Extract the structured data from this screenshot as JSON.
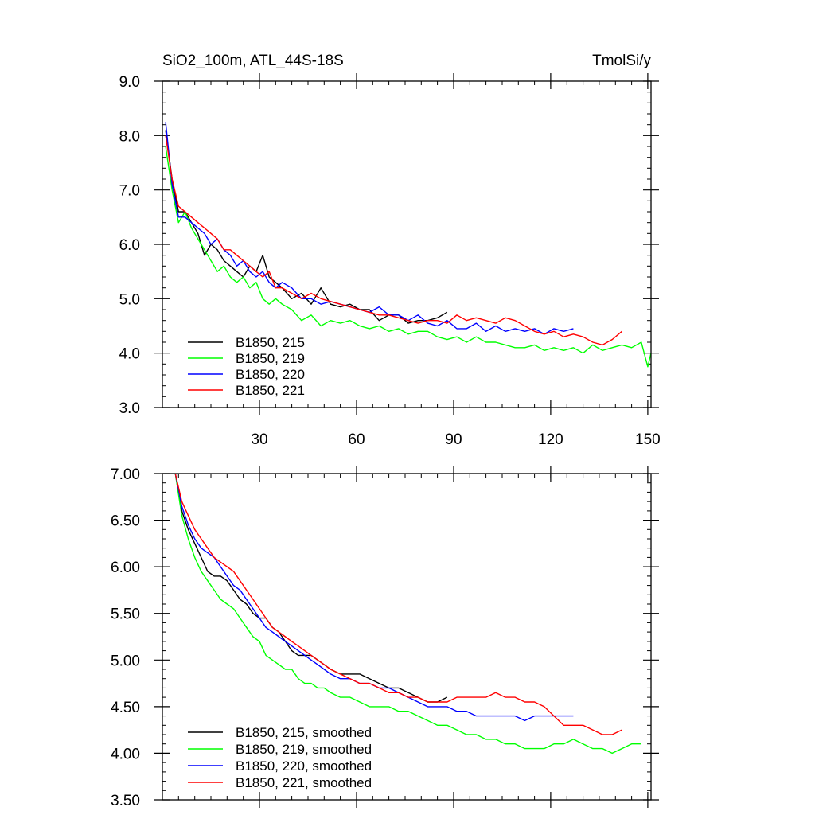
{
  "chart_data": [
    {
      "type": "line",
      "title_left": "SiO2_100m, ATL_44S-18S",
      "title_right": "TmolSi/y",
      "xlabel": "",
      "ylabel": "",
      "xlim": [
        0,
        151
      ],
      "ylim": [
        3.0,
        9.0
      ],
      "xticks": [
        30,
        60,
        90,
        120,
        150
      ],
      "xtick_labels": [
        "30",
        "60",
        "90",
        "120",
        "150"
      ],
      "yticks": [
        3.0,
        4.0,
        5.0,
        6.0,
        7.0,
        8.0,
        9.0
      ],
      "ytick_labels": [
        "3.0",
        "4.0",
        "5.0",
        "6.0",
        "7.0",
        "8.0",
        "9.0"
      ],
      "legend_position": "bottom-left",
      "series": [
        {
          "name": "B1850, 215",
          "color": "#000000",
          "x": [
            1,
            3,
            5,
            7,
            9,
            11,
            13,
            15,
            17,
            19,
            21,
            23,
            25,
            27,
            29,
            31,
            33,
            35,
            37,
            40,
            43,
            46,
            49,
            52,
            55,
            58,
            61,
            64,
            67,
            70,
            73,
            76,
            79,
            82,
            85,
            88
          ],
          "y": [
            8.1,
            7.2,
            6.6,
            6.6,
            6.4,
            6.2,
            5.8,
            6.0,
            5.9,
            5.7,
            5.6,
            5.5,
            5.4,
            5.6,
            5.5,
            5.8,
            5.4,
            5.3,
            5.2,
            5.0,
            5.1,
            4.9,
            5.2,
            4.9,
            4.85,
            4.9,
            4.8,
            4.8,
            4.6,
            4.7,
            4.7,
            4.55,
            4.6,
            4.6,
            4.65,
            4.75
          ]
        },
        {
          "name": "B1850, 219",
          "color": "#00ff00",
          "x": [
            1,
            3,
            5,
            7,
            9,
            11,
            13,
            15,
            17,
            19,
            21,
            23,
            25,
            27,
            29,
            31,
            33,
            35,
            37,
            40,
            43,
            46,
            49,
            52,
            55,
            58,
            61,
            64,
            67,
            70,
            73,
            76,
            79,
            82,
            85,
            88,
            91,
            94,
            97,
            100,
            103,
            106,
            109,
            112,
            115,
            118,
            121,
            124,
            127,
            130,
            133,
            136,
            139,
            142,
            145,
            148,
            150,
            151
          ],
          "y": [
            7.8,
            7.0,
            6.4,
            6.6,
            6.3,
            6.1,
            5.9,
            5.7,
            5.5,
            5.6,
            5.4,
            5.3,
            5.4,
            5.2,
            5.3,
            5.0,
            4.9,
            5.0,
            4.9,
            4.8,
            4.6,
            4.7,
            4.5,
            4.6,
            4.55,
            4.6,
            4.5,
            4.45,
            4.5,
            4.4,
            4.45,
            4.35,
            4.4,
            4.4,
            4.3,
            4.25,
            4.3,
            4.2,
            4.3,
            4.2,
            4.2,
            4.15,
            4.1,
            4.1,
            4.15,
            4.05,
            4.1,
            4.05,
            4.1,
            4.0,
            4.15,
            4.05,
            4.1,
            4.15,
            4.1,
            4.2,
            3.75,
            4.0
          ]
        },
        {
          "name": "B1850, 220",
          "color": "#0000ff",
          "x": [
            1,
            3,
            5,
            7,
            9,
            11,
            13,
            15,
            17,
            19,
            21,
            23,
            25,
            27,
            29,
            31,
            33,
            35,
            37,
            40,
            43,
            46,
            49,
            52,
            55,
            58,
            61,
            64,
            67,
            70,
            73,
            76,
            79,
            82,
            85,
            88,
            91,
            94,
            97,
            100,
            103,
            106,
            109,
            112,
            115,
            118,
            121,
            124,
            127
          ],
          "y": [
            8.25,
            7.1,
            6.5,
            6.5,
            6.4,
            6.3,
            6.2,
            6.0,
            6.1,
            5.9,
            5.8,
            5.6,
            5.7,
            5.5,
            5.4,
            5.5,
            5.3,
            5.2,
            5.3,
            5.2,
            5.0,
            5.0,
            4.9,
            4.95,
            4.9,
            4.85,
            4.8,
            4.75,
            4.85,
            4.7,
            4.7,
            4.6,
            4.7,
            4.55,
            4.5,
            4.6,
            4.45,
            4.45,
            4.55,
            4.4,
            4.5,
            4.4,
            4.45,
            4.4,
            4.45,
            4.35,
            4.45,
            4.4,
            4.45
          ]
        },
        {
          "name": "B1850, 221",
          "color": "#ff0000",
          "x": [
            1,
            3,
            5,
            7,
            9,
            11,
            13,
            15,
            17,
            19,
            21,
            23,
            25,
            27,
            29,
            31,
            33,
            35,
            37,
            40,
            43,
            46,
            49,
            52,
            55,
            58,
            61,
            64,
            67,
            70,
            73,
            76,
            79,
            82,
            85,
            88,
            91,
            94,
            97,
            100,
            103,
            106,
            109,
            112,
            115,
            118,
            121,
            124,
            127,
            130,
            133,
            136,
            139,
            142
          ],
          "y": [
            8.0,
            7.2,
            6.7,
            6.6,
            6.5,
            6.4,
            6.3,
            6.2,
            6.1,
            5.9,
            5.9,
            5.8,
            5.7,
            5.6,
            5.5,
            5.4,
            5.5,
            5.2,
            5.2,
            5.1,
            5.0,
            5.1,
            5.0,
            4.95,
            4.9,
            4.85,
            4.8,
            4.75,
            4.7,
            4.7,
            4.65,
            4.6,
            4.55,
            4.6,
            4.6,
            4.55,
            4.7,
            4.6,
            4.65,
            4.6,
            4.55,
            4.65,
            4.6,
            4.5,
            4.4,
            4.35,
            4.4,
            4.3,
            4.35,
            4.3,
            4.2,
            4.15,
            4.25,
            4.4
          ]
        }
      ],
      "legend": [
        "B1850, 215",
        "B1850, 219",
        "B1850, 220",
        "B1850, 221"
      ]
    },
    {
      "type": "line",
      "title_left": "",
      "title_right": "",
      "xlabel": "",
      "ylabel": "",
      "xlim": [
        0,
        151
      ],
      "ylim": [
        3.5,
        7.0
      ],
      "xticks": [
        30,
        60,
        90,
        120,
        150
      ],
      "xtick_labels": [
        "",
        "",
        "",
        "",
        ""
      ],
      "yticks": [
        3.5,
        4.0,
        4.5,
        5.0,
        5.5,
        6.0,
        6.5,
        7.0
      ],
      "ytick_labels": [
        "3.50",
        "4.00",
        "4.50",
        "5.00",
        "5.50",
        "6.00",
        "6.50",
        "7.00"
      ],
      "legend_position": "bottom-left",
      "series": [
        {
          "name": "B1850, 215, smoothed",
          "color": "#000000",
          "x": [
            4,
            6,
            8,
            10,
            12,
            14,
            16,
            18,
            20,
            22,
            24,
            26,
            28,
            30,
            32,
            34,
            36,
            38,
            40,
            42,
            44,
            46,
            48,
            50,
            52,
            55,
            58,
            61,
            64,
            67,
            70,
            73,
            76,
            79,
            82,
            85,
            88
          ],
          "y": [
            7.0,
            6.6,
            6.4,
            6.25,
            6.1,
            5.95,
            5.9,
            5.9,
            5.85,
            5.75,
            5.65,
            5.6,
            5.5,
            5.45,
            5.45,
            5.35,
            5.3,
            5.2,
            5.1,
            5.05,
            5.05,
            5.05,
            5.0,
            4.95,
            4.9,
            4.85,
            4.85,
            4.85,
            4.8,
            4.75,
            4.7,
            4.7,
            4.65,
            4.6,
            4.55,
            4.55,
            4.6
          ]
        },
        {
          "name": "B1850, 219, smoothed",
          "color": "#00ff00",
          "x": [
            4,
            6,
            8,
            10,
            12,
            14,
            16,
            18,
            20,
            22,
            24,
            26,
            28,
            30,
            32,
            34,
            36,
            38,
            40,
            42,
            44,
            46,
            48,
            50,
            52,
            55,
            58,
            61,
            64,
            67,
            70,
            73,
            76,
            79,
            82,
            85,
            88,
            91,
            94,
            97,
            100,
            103,
            106,
            109,
            112,
            115,
            118,
            121,
            124,
            127,
            130,
            133,
            136,
            139,
            142,
            145,
            148
          ],
          "y": [
            7.0,
            6.55,
            6.3,
            6.1,
            5.95,
            5.85,
            5.75,
            5.65,
            5.6,
            5.55,
            5.45,
            5.35,
            5.25,
            5.2,
            5.05,
            5.0,
            4.95,
            4.9,
            4.9,
            4.8,
            4.75,
            4.75,
            4.7,
            4.7,
            4.65,
            4.6,
            4.6,
            4.55,
            4.5,
            4.5,
            4.5,
            4.45,
            4.45,
            4.4,
            4.35,
            4.3,
            4.3,
            4.25,
            4.2,
            4.2,
            4.15,
            4.15,
            4.1,
            4.1,
            4.05,
            4.05,
            4.05,
            4.1,
            4.1,
            4.15,
            4.1,
            4.05,
            4.05,
            4.0,
            4.05,
            4.1,
            4.1
          ]
        },
        {
          "name": "B1850, 220, smoothed",
          "color": "#0000ff",
          "x": [
            4,
            6,
            8,
            10,
            12,
            14,
            16,
            18,
            20,
            22,
            24,
            26,
            28,
            30,
            32,
            34,
            36,
            38,
            40,
            42,
            44,
            46,
            48,
            50,
            52,
            55,
            58,
            61,
            64,
            67,
            70,
            73,
            76,
            79,
            82,
            85,
            88,
            91,
            94,
            97,
            100,
            103,
            106,
            109,
            112,
            115,
            118,
            121,
            124,
            127
          ],
          "y": [
            7.0,
            6.65,
            6.45,
            6.3,
            6.2,
            6.15,
            6.1,
            6.0,
            5.9,
            5.8,
            5.75,
            5.65,
            5.55,
            5.45,
            5.35,
            5.3,
            5.25,
            5.2,
            5.15,
            5.1,
            5.05,
            5.0,
            4.95,
            4.9,
            4.85,
            4.8,
            4.8,
            4.75,
            4.75,
            4.7,
            4.7,
            4.65,
            4.6,
            4.55,
            4.5,
            4.5,
            4.5,
            4.45,
            4.45,
            4.4,
            4.4,
            4.4,
            4.4,
            4.4,
            4.35,
            4.4,
            4.4,
            4.4,
            4.4,
            4.4
          ]
        },
        {
          "name": "B1850, 221, smoothed",
          "color": "#ff0000",
          "x": [
            4,
            6,
            8,
            10,
            12,
            14,
            16,
            18,
            20,
            22,
            24,
            26,
            28,
            30,
            32,
            34,
            36,
            38,
            40,
            42,
            44,
            46,
            48,
            50,
            52,
            55,
            58,
            61,
            64,
            67,
            70,
            73,
            76,
            79,
            82,
            85,
            88,
            91,
            94,
            97,
            100,
            103,
            106,
            109,
            112,
            115,
            118,
            121,
            124,
            127,
            130,
            133,
            136,
            139,
            142
          ],
          "y": [
            7.0,
            6.7,
            6.55,
            6.4,
            6.3,
            6.2,
            6.1,
            6.05,
            6.0,
            5.95,
            5.85,
            5.75,
            5.65,
            5.55,
            5.45,
            5.35,
            5.3,
            5.25,
            5.2,
            5.15,
            5.1,
            5.05,
            5.0,
            4.95,
            4.9,
            4.85,
            4.8,
            4.75,
            4.75,
            4.7,
            4.65,
            4.65,
            4.6,
            4.6,
            4.55,
            4.55,
            4.55,
            4.6,
            4.6,
            4.6,
            4.6,
            4.65,
            4.6,
            4.6,
            4.55,
            4.55,
            4.5,
            4.4,
            4.3,
            4.3,
            4.3,
            4.25,
            4.2,
            4.2,
            4.25
          ]
        }
      ],
      "legend": [
        "B1850, 215, smoothed",
        "B1850, 219, smoothed",
        "B1850, 220, smoothed",
        "B1850, 221, smoothed"
      ]
    }
  ]
}
